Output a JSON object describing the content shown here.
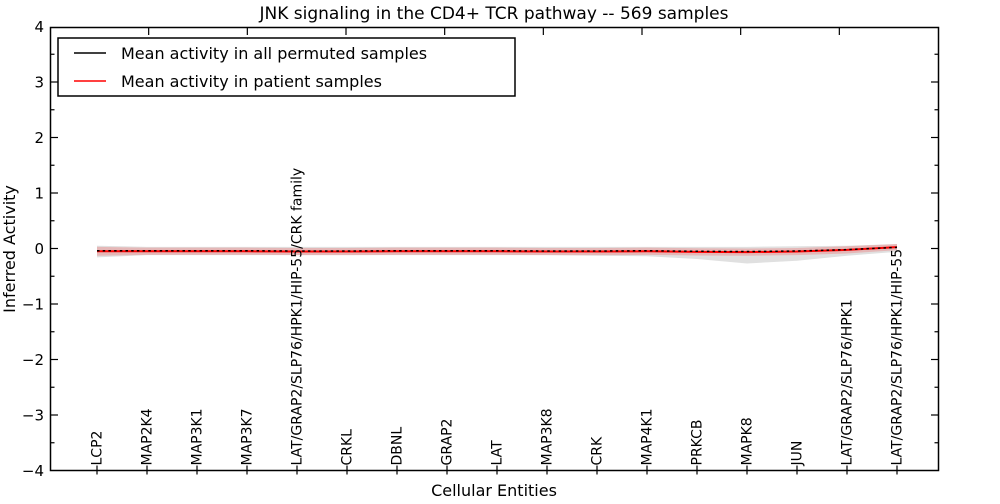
{
  "chart_data": {
    "type": "line",
    "title": "JNK signaling in the CD4+ TCR pathway -- 569 samples",
    "xlabel": "Cellular Entities",
    "ylabel": "Inferred Activity",
    "ylim": [
      -4,
      4
    ],
    "ytick_labels": [
      "4",
      "3",
      "2",
      "1",
      "0",
      "−1",
      "−2",
      "−3",
      "−4"
    ],
    "ytick_values": [
      4,
      3,
      2,
      1,
      0,
      -1,
      -2,
      -3,
      -4
    ],
    "ytick_minor_step": 0.5,
    "xlim": [
      0,
      18
    ],
    "xticks_top_data": [
      2,
      4,
      6,
      8,
      10,
      12,
      14,
      16
    ],
    "grid": false,
    "categories": [
      "LCP2",
      "MAP2K4",
      "MAP3K1",
      "MAP3K7",
      "LAT/GRAP2/SLP76/HPK1/HIP-55/CRK family",
      "CRKL",
      "DBNL",
      "GRAP2",
      "LAT",
      "MAP3K8",
      "CRK",
      "MAP4K1",
      "PRKCB",
      "MAPK8",
      "JUN",
      "LAT/GRAP2/SLP76/HPK1",
      "LAT/GRAP2/SLP76/HPK1/HIP-55"
    ],
    "series": [
      {
        "name": "Mean activity in all permuted samples",
        "color": "#000000",
        "style": "dotted",
        "values": [
          -0.04,
          -0.04,
          -0.04,
          -0.04,
          -0.045,
          -0.045,
          -0.04,
          -0.04,
          -0.04,
          -0.045,
          -0.045,
          -0.04,
          -0.05,
          -0.055,
          -0.045,
          -0.02,
          0.02
        ]
      },
      {
        "name": "Mean activity in patient samples",
        "color": "#ff0000",
        "style": "solid",
        "values": [
          -0.05,
          -0.05,
          -0.05,
          -0.05,
          -0.055,
          -0.055,
          -0.05,
          -0.05,
          -0.05,
          -0.055,
          -0.055,
          -0.05,
          -0.06,
          -0.065,
          -0.055,
          -0.025,
          0.025
        ]
      }
    ],
    "bands": [
      {
        "name": "permuted-samples-range",
        "color": "#999999",
        "opacity": 0.3,
        "upper": [
          0.05,
          0.03,
          0.03,
          0.03,
          0.03,
          0.03,
          0.03,
          0.03,
          0.03,
          0.03,
          0.03,
          0.03,
          0.03,
          0.03,
          0.04,
          0.05,
          0.08
        ],
        "lower": [
          -0.16,
          -0.12,
          -0.12,
          -0.12,
          -0.12,
          -0.12,
          -0.12,
          -0.12,
          -0.12,
          -0.12,
          -0.13,
          -0.14,
          -0.19,
          -0.27,
          -0.22,
          -0.13,
          -0.06
        ]
      },
      {
        "name": "patient-samples-range",
        "color": "#ff0000",
        "opacity": 0.18,
        "upper": [
          0.03,
          0.015,
          0.015,
          0.015,
          0.01,
          0.01,
          0.015,
          0.015,
          0.015,
          0.01,
          0.01,
          0.015,
          0.005,
          0.0,
          0.01,
          0.04,
          0.08
        ],
        "lower": [
          -0.13,
          -0.115,
          -0.115,
          -0.115,
          -0.12,
          -0.12,
          -0.115,
          -0.115,
          -0.115,
          -0.12,
          -0.12,
          -0.115,
          -0.125,
          -0.13,
          -0.12,
          -0.09,
          -0.03
        ]
      }
    ],
    "legend": {
      "position": "upper left",
      "entries": [
        "Mean activity in all permuted samples",
        "Mean activity in patient samples"
      ]
    }
  },
  "colors": {
    "background": "#ffffff",
    "axis": "#000000",
    "permuted_line": "#000000",
    "patient_line": "#ff0000"
  }
}
